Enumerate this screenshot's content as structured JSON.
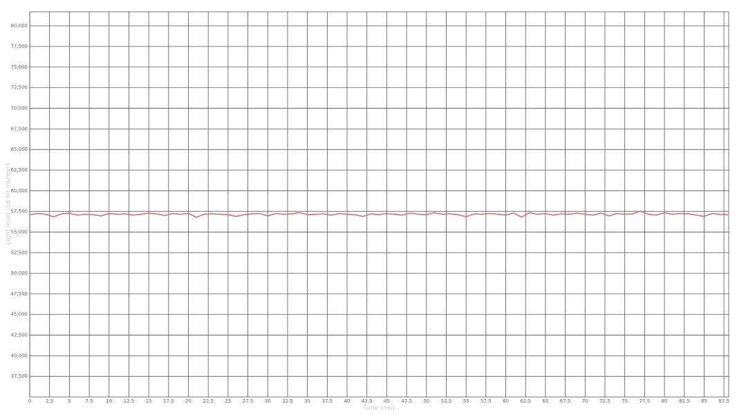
{
  "chart_data": {
    "type": "line",
    "x_label": "Time (ms)",
    "y_label": "Light level (16 bit integer)",
    "x": [
      0,
      1,
      2,
      3,
      4,
      5,
      6,
      7,
      8,
      9,
      10,
      11,
      12,
      13,
      14,
      15,
      16,
      17,
      18,
      19,
      20,
      21,
      22,
      23,
      24,
      25,
      26,
      27,
      28,
      29,
      30,
      31,
      32,
      33,
      34,
      35,
      36,
      37,
      38,
      39,
      40,
      41,
      42,
      43,
      44,
      45,
      46,
      47,
      48,
      49,
      50,
      51,
      52,
      53,
      54,
      55,
      56,
      57,
      58,
      59,
      60,
      61,
      62,
      63,
      64,
      65,
      66,
      67,
      68,
      69,
      70,
      71,
      72,
      73,
      74,
      75,
      76,
      77,
      78,
      79,
      80,
      81,
      82,
      83,
      84,
      85,
      86,
      87,
      88
    ],
    "values": [
      57100,
      57250,
      57150,
      56850,
      57200,
      57300,
      57050,
      57150,
      57100,
      56950,
      57250,
      57150,
      57200,
      57050,
      57150,
      57300,
      57200,
      57000,
      57250,
      57150,
      57250,
      56800,
      57150,
      57200,
      57150,
      57100,
      56900,
      57100,
      57200,
      57250,
      56950,
      57250,
      57150,
      57200,
      57350,
      57100,
      57150,
      57200,
      57050,
      57250,
      57150,
      57100,
      56900,
      57200,
      57100,
      57250,
      57150,
      57050,
      57300,
      57150,
      57100,
      57350,
      57150,
      57200,
      57100,
      56850,
      57200,
      57150,
      57250,
      57150,
      57050,
      57300,
      56800,
      57350,
      57150,
      57250,
      57050,
      57200,
      57150,
      57300,
      57150,
      57050,
      57300,
      56950,
      57250,
      57150,
      57200,
      57550,
      57150,
      57050,
      57350,
      57150,
      57250,
      57200,
      57050,
      56900,
      57250,
      57150,
      57100
    ],
    "color": "#e36b7b",
    "xlim": [
      0,
      88.1
    ],
    "ylim": [
      35000,
      81700
    ],
    "xticks": [
      0,
      2.5,
      5,
      7.5,
      10,
      12.5,
      15,
      17.5,
      20,
      22.5,
      25,
      27.5,
      30,
      32.5,
      35,
      37.5,
      40,
      42.5,
      45,
      47.5,
      50,
      52.5,
      55,
      57.5,
      60,
      62.5,
      65,
      67.5,
      70,
      72.5,
      75,
      77.5,
      80,
      82.5,
      85,
      87.5
    ],
    "yticks": [
      {
        "value": 37500,
        "label": "37,500"
      },
      {
        "value": 40000,
        "label": "40,000"
      },
      {
        "value": 42500,
        "label": "42,500"
      },
      {
        "value": 45000,
        "label": "45,000"
      },
      {
        "value": 47500,
        "label": "47,500"
      },
      {
        "value": 50000,
        "label": "50,000"
      },
      {
        "value": 52500,
        "label": "52,500"
      },
      {
        "value": 55000,
        "label": "55,000"
      },
      {
        "value": 57500,
        "label": "57,500"
      },
      {
        "value": 60000,
        "label": "60,000"
      },
      {
        "value": 62500,
        "label": "62,500"
      },
      {
        "value": 65000,
        "label": "65,000"
      },
      {
        "value": 67500,
        "label": "67,500"
      },
      {
        "value": 70000,
        "label": "70,000"
      },
      {
        "value": 72500,
        "label": "72,500"
      },
      {
        "value": 75000,
        "label": "75,000"
      },
      {
        "value": 77500,
        "label": "77,500"
      },
      {
        "value": 80000,
        "label": "80,000"
      }
    ],
    "grid": true
  }
}
